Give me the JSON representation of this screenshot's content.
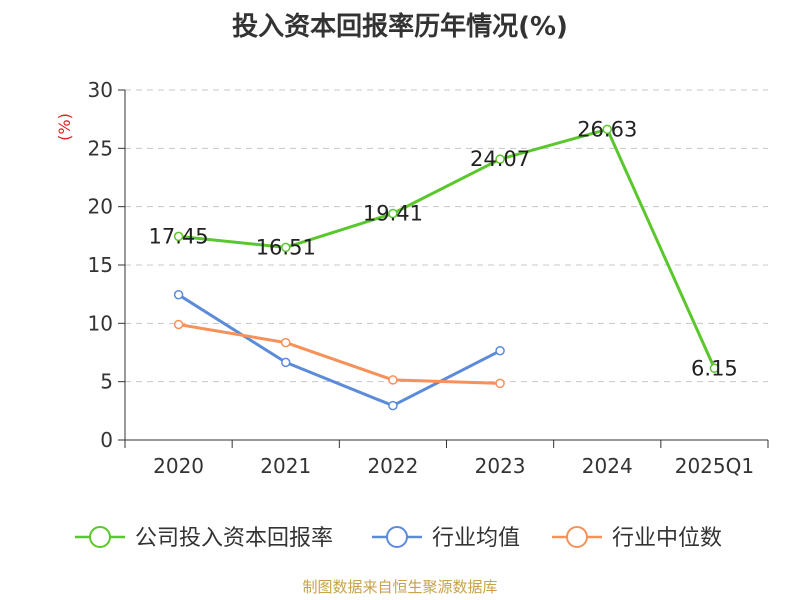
{
  "title": "投入资本回报率历年情况(%)",
  "source": "制图数据来自恒生聚源数据库",
  "chart_data": {
    "type": "line",
    "title": "投入资本回报率历年情况(%)",
    "ylabel": "(%)",
    "xlabel": "",
    "ylim": [
      0,
      30
    ],
    "yticks": [
      0,
      5,
      10,
      15,
      20,
      25,
      30
    ],
    "grid": true,
    "legend_position": "bottom",
    "categories": [
      "2020",
      "2021",
      "2022",
      "2023",
      "2024",
      "2025Q1"
    ],
    "series": [
      {
        "name": "公司投入资本回报率",
        "color": "#5ac72d",
        "values": [
          17.45,
          16.51,
          19.41,
          24.07,
          26.63,
          6.15
        ],
        "show_labels": true
      },
      {
        "name": "行业均值",
        "color": "#5b8bd9",
        "values": [
          12.45,
          6.65,
          2.95,
          7.65,
          null,
          null
        ],
        "show_labels": false
      },
      {
        "name": "行业中位数",
        "color": "#f7915a",
        "values": [
          9.9,
          8.35,
          5.15,
          4.85,
          null,
          null
        ],
        "show_labels": false
      }
    ]
  }
}
